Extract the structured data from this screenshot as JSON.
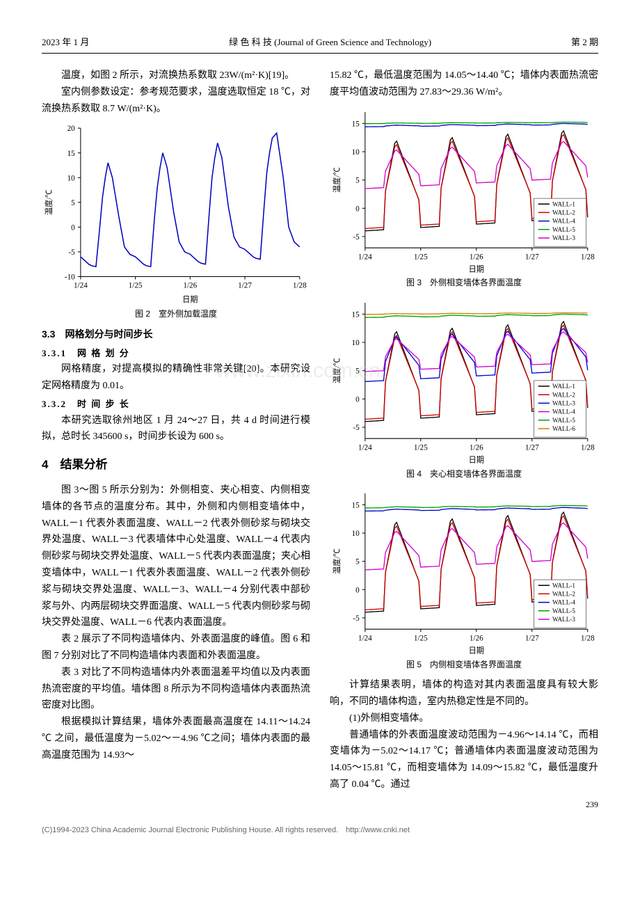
{
  "header": {
    "left": "2023 年 1 月",
    "center": "绿 色 科 技 (Journal of Green Science and Technology)",
    "right": "第 2 期"
  },
  "leftcol": {
    "p1": "温度，如图 2 所示，对流换热系数取 23W/(m²·K)[19]。",
    "p2": "室内侧参数设定：参考规范要求，温度选取恒定 18 ℃，对流换热系数取 8.7 W/(m²·K)。",
    "sec33": "3.3　网格划分与时间步长",
    "sec331": "3.3.1　网 格 划 分",
    "p3": "网格精度，对提高模拟的精确性非常关键[20]。本研究设定网格精度为 0.01。",
    "sec332": "3.3.2　时 间 步 长",
    "p4": "本研究选取徐州地区 1 月 24～27 日，共 4 d 时间进行模拟，总时长 345600 s，时间步长设为 600 s。",
    "sec4": "4　结果分析",
    "p5": "图 3～图 5 所示分别为：外侧相变、夹心相变、内侧相变墙体的各节点的温度分布。其中，外侧和内侧相变墙体中，WALL－1 代表外表面温度、WALL－2 代表外侧砂浆与砌块交界处温度、WALL－3 代表墙体中心处温度、WALL－4 代表内侧砂浆与砌块交界处温度、WALL－5 代表内表面温度；夹心相变墙体中，WALL－1 代表外表面温度、WALL－2 代表外侧砂浆与砌块交界处温度、WALL－3、WALL－4 分别代表中部砂浆与外、内两层砌块交界面温度、WALL－5 代表内侧砂浆与砌块交界处温度、WALL－6 代表内表面温度。",
    "p6": "表 2 展示了不同构造墙体内、外表面温度的峰值。图 6 和图 7 分别对比了不同构造墙体内表面和外表面温度。",
    "p7": "表 3 对比了不同构造墙体内外表面温差平均值以及内表面热流密度的平均值。墙体图 8 所示为不同构造墙体内表面热流密度对比图。",
    "p8": "根据模拟计算结果，墙体外表面最高温度在 14.11～14.24 ℃ 之间，最低温度为－5.02～－4.96 ℃之间；墙体内表面的最高温度范围为 14.93～"
  },
  "rightcol": {
    "p1": "15.82 ℃，最低温度范围为 14.05～14.40 ℃；墙体内表面热流密度平均值波动范围为 27.83～29.36 W/m²。",
    "p2": "计算结果表明，墙体的构造对其内表面温度具有较大影响，不同的墙体构造，室内热稳定性是不同的。",
    "p3": "(1)外侧相变墙体。",
    "p4": "普通墙体的外表面温度波动范围为－4.96～14.14 ℃，而相变墙体为－5.02～14.17 ℃；普通墙体内表面温度波动范围为 14.05～15.81 ℃，而相变墙体为 14.09～15.82 ℃，最低温度升高了 0.04 ℃。通过"
  },
  "fig2": {
    "caption": "图 2　室外侧加载温度",
    "xlabel": "日期",
    "ylabel": "温度/℃",
    "xticks": [
      "1/24",
      "1/25",
      "1/26",
      "1/27",
      "1/28"
    ],
    "yticks": [
      -10,
      -5,
      0,
      5,
      10,
      15,
      20
    ],
    "ylim": [
      -10,
      20
    ],
    "line_color": "#0000c0",
    "bg": "#ffffff",
    "axis": "#000000",
    "grid": "none",
    "data_x": [
      0,
      0.05,
      0.1,
      0.15,
      0.2,
      0.28,
      0.35,
      0.4,
      0.45,
      0.5,
      0.58,
      0.7,
      0.8,
      0.9,
      1.0,
      1.05,
      1.1,
      1.15,
      1.2,
      1.28,
      1.35,
      1.4,
      1.45,
      1.5,
      1.58,
      1.7,
      1.8,
      1.9,
      2.0,
      2.05,
      2.1,
      2.15,
      2.2,
      2.28,
      2.35,
      2.4,
      2.45,
      2.5,
      2.58,
      2.7,
      2.8,
      2.9,
      3.0,
      3.05,
      3.1,
      3.15,
      3.2,
      3.28,
      3.35,
      3.4,
      3.45,
      3.5,
      3.58,
      3.7,
      3.8,
      3.9,
      4.0
    ],
    "data_y": [
      -6,
      -6.5,
      -7,
      -7.5,
      -7.8,
      -8,
      0,
      6,
      10,
      13,
      10,
      2,
      -4,
      -5.5,
      -6,
      -6.5,
      -7,
      -7.5,
      -7.8,
      -8,
      2,
      8,
      12,
      15,
      12,
      3,
      -3,
      -5,
      -5.5,
      -6,
      -6.5,
      -7,
      -7.3,
      -7.5,
      3,
      10,
      14,
      17,
      14,
      4,
      -2,
      -4,
      -4.5,
      -5,
      -5.5,
      -6,
      -6.3,
      -6.5,
      4,
      11,
      15,
      18,
      19,
      10,
      0,
      -3,
      -4
    ]
  },
  "fig3": {
    "caption": "图 3　外侧相变墙体各界面温度",
    "xlabel": "日期",
    "ylabel": "温度/℃",
    "xticks": [
      "1/24",
      "1/25",
      "1/26",
      "1/27",
      "1/28"
    ],
    "yticks": [
      -5,
      0,
      5,
      10,
      15
    ],
    "ylim": [
      -7,
      17
    ],
    "legend": [
      "WALL-1",
      "WALL-2",
      "WALL-4",
      "WALL-5",
      "WALL-3"
    ],
    "colors": [
      "#000000",
      "#d00000",
      "#0000d0",
      "#00a000",
      "#d000d0"
    ],
    "bg": "#ffffff"
  },
  "fig4": {
    "caption": "图 4　夹心相变墙体各界面温度",
    "xlabel": "日期",
    "ylabel": "温度/℃",
    "xticks": [
      "1/24",
      "1/25",
      "1/26",
      "1/27",
      "1/28"
    ],
    "yticks": [
      -5,
      0,
      5,
      10,
      15
    ],
    "ylim": [
      -7,
      17
    ],
    "legend": [
      "WALL-1",
      "WALL-2",
      "WALL-3",
      "WALL-4",
      "WALL-5",
      "WALL-6"
    ],
    "colors": [
      "#000000",
      "#d00000",
      "#0000d0",
      "#d000d0",
      "#00a000",
      "#d08000"
    ],
    "bg": "#ffffff"
  },
  "fig5": {
    "caption": "图 5　内侧相变墙体各界面温度",
    "xlabel": "日期",
    "ylabel": "温度/℃",
    "xticks": [
      "1/24",
      "1/25",
      "1/26",
      "1/27",
      "1/28"
    ],
    "yticks": [
      -5,
      0,
      5,
      10,
      15
    ],
    "ylim": [
      -7,
      17
    ],
    "legend": [
      "WALL-1",
      "WALL-2",
      "WALL-4",
      "WALL-5",
      "WALL-3"
    ],
    "colors": [
      "#000000",
      "#d00000",
      "#0000d0",
      "#00a000",
      "#d000d0"
    ],
    "bg": "#ffffff"
  },
  "watermark": "www.zixin.com.cn",
  "pagenum": "239",
  "footer": "(C)1994-2023 China Academic Journal Electronic Publishing House. All rights reserved.　http://www.cnki.net"
}
